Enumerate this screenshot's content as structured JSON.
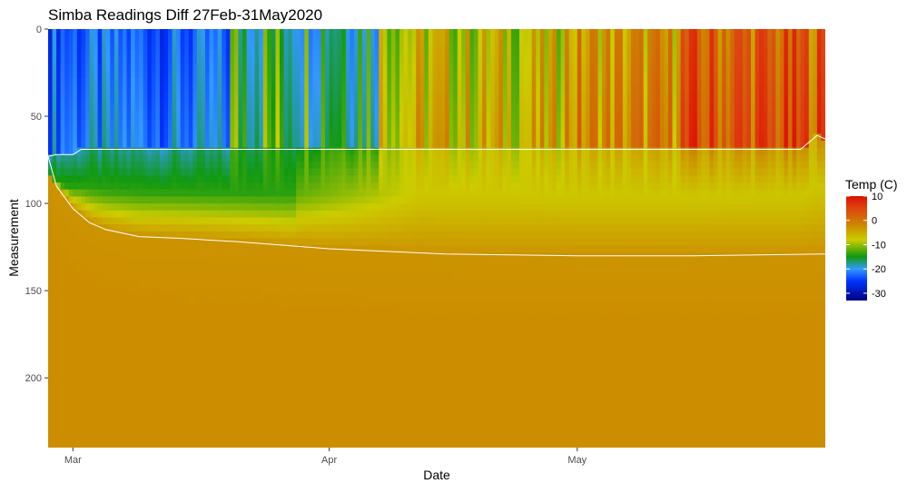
{
  "chart_data": {
    "type": "heatmap",
    "title": "Simba Readings Diff 27Feb-31May2020",
    "xlabel": "Date",
    "ylabel": "Measurement",
    "x_range": [
      "2020-02-27",
      "2020-05-31"
    ],
    "y_range": [
      0,
      240
    ],
    "y_reversed": true,
    "grid": false,
    "x_ticks": [
      {
        "date": "2020-03-01",
        "label": "Mar"
      },
      {
        "date": "2020-04-01",
        "label": "Apr"
      },
      {
        "date": "2020-05-01",
        "label": "May"
      }
    ],
    "y_ticks": [
      0,
      50,
      100,
      150,
      200
    ],
    "legend": {
      "title": "Temp (C)",
      "placement": "right",
      "range": [
        -33,
        10
      ],
      "ticks": [
        10,
        0,
        -10,
        -20,
        -30
      ],
      "color_stops": [
        {
          "value": -33,
          "color": "#000080"
        },
        {
          "value": -25,
          "color": "#0033ff"
        },
        {
          "value": -20,
          "color": "#3399ff"
        },
        {
          "value": -15,
          "color": "#119911"
        },
        {
          "value": -8,
          "color": "#cccc00"
        },
        {
          "value": -2,
          "color": "#cc8800"
        },
        {
          "value": 5,
          "color": "#dd4411"
        },
        {
          "value": 10,
          "color": "#dd1100"
        }
      ]
    },
    "series": [
      {
        "values": [
          {
            "date": "2020-02-27",
            "y": 73
          },
          {
            "date": "2020-02-28",
            "y": 72
          },
          {
            "date": "2020-03-01",
            "y": 72
          },
          {
            "date": "2020-03-02",
            "y": 69
          },
          {
            "date": "2020-04-01",
            "y": 69
          },
          {
            "date": "2020-05-01",
            "y": 69
          },
          {
            "date": "2020-05-28",
            "y": 69
          },
          {
            "date": "2020-05-30",
            "y": 61
          },
          {
            "date": "2020-05-31",
            "y": 63
          }
        ]
      },
      {
        "values": [
          {
            "date": "2020-02-27",
            "y": 73
          },
          {
            "date": "2020-02-28",
            "y": 90
          },
          {
            "date": "2020-03-01",
            "y": 103
          },
          {
            "date": "2020-03-03",
            "y": 111
          },
          {
            "date": "2020-03-05",
            "y": 115
          },
          {
            "date": "2020-03-09",
            "y": 119
          },
          {
            "date": "2020-03-14",
            "y": 120
          },
          {
            "date": "2020-03-21",
            "y": 122
          },
          {
            "date": "2020-04-01",
            "y": 126
          },
          {
            "date": "2020-04-15",
            "y": 129
          },
          {
            "date": "2020-05-01",
            "y": 130
          },
          {
            "date": "2020-05-15",
            "y": 130
          },
          {
            "date": "2020-05-31",
            "y": 129
          }
        ]
      }
    ],
    "annotations": []
  }
}
